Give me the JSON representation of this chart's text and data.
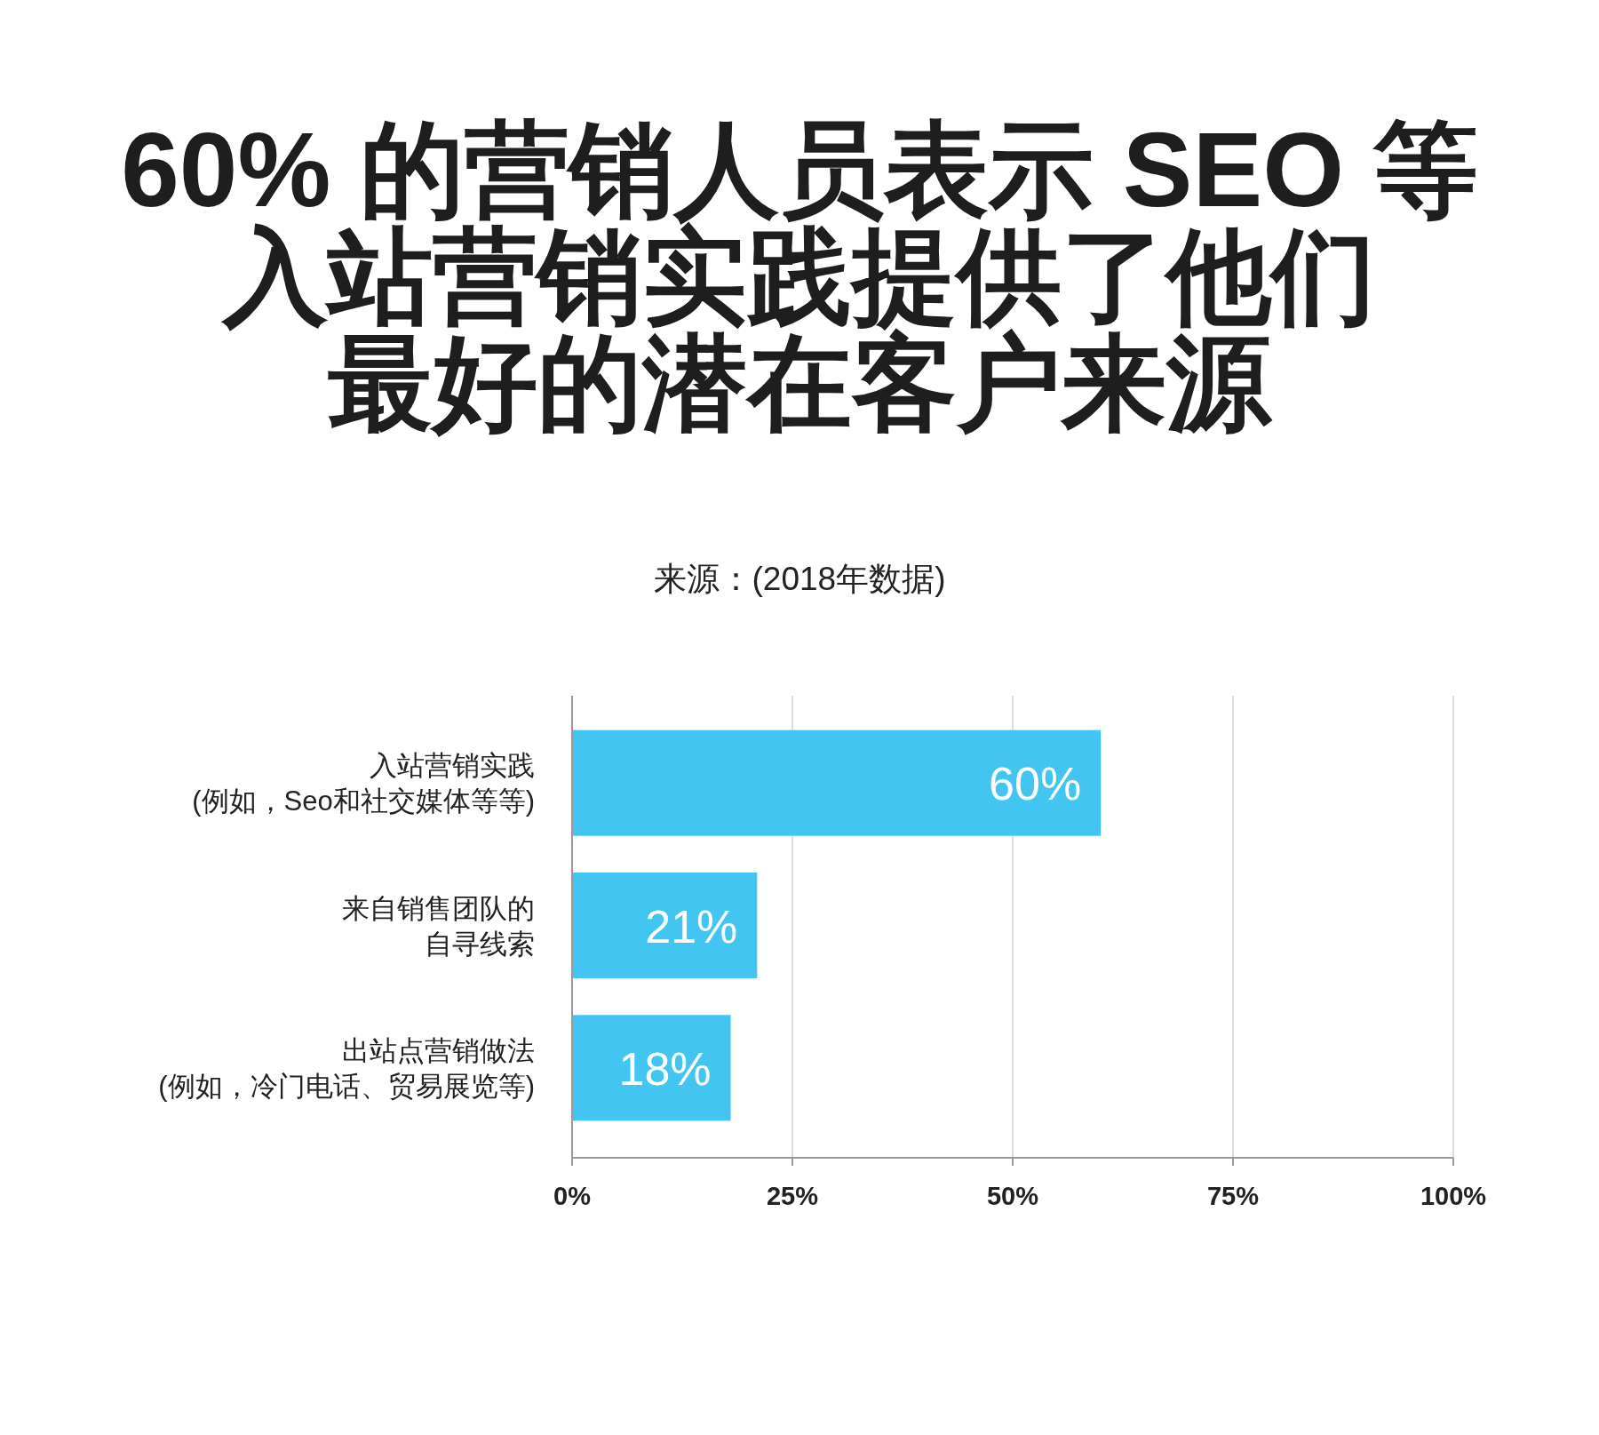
{
  "chart_data": {
    "type": "bar",
    "orientation": "horizontal",
    "title": "60% 的营销人员表示 SEO 等入站营销实践提供了他们最好的潜在客户来源",
    "subtitle": "来源：(2018年数据)",
    "categories": [
      "入站营销实践(例如，Seo和社交媒体等等)",
      "来自销售团队的自寻线索",
      "出站点营销做法(例如，冷门电话、贸易展览等)"
    ],
    "values": [
      60,
      21,
      18
    ],
    "value_labels": [
      "60%",
      "21%",
      "18%"
    ],
    "color": "#42c5f0",
    "xlim": [
      0,
      100
    ],
    "xticks": [
      {
        "value": 0,
        "label": "0%"
      },
      {
        "value": 25,
        "label": "25%"
      },
      {
        "value": 50,
        "label": "50%"
      },
      {
        "value": 75,
        "label": "75%"
      },
      {
        "value": 100,
        "label": "100%"
      }
    ],
    "grid": "x"
  }
}
